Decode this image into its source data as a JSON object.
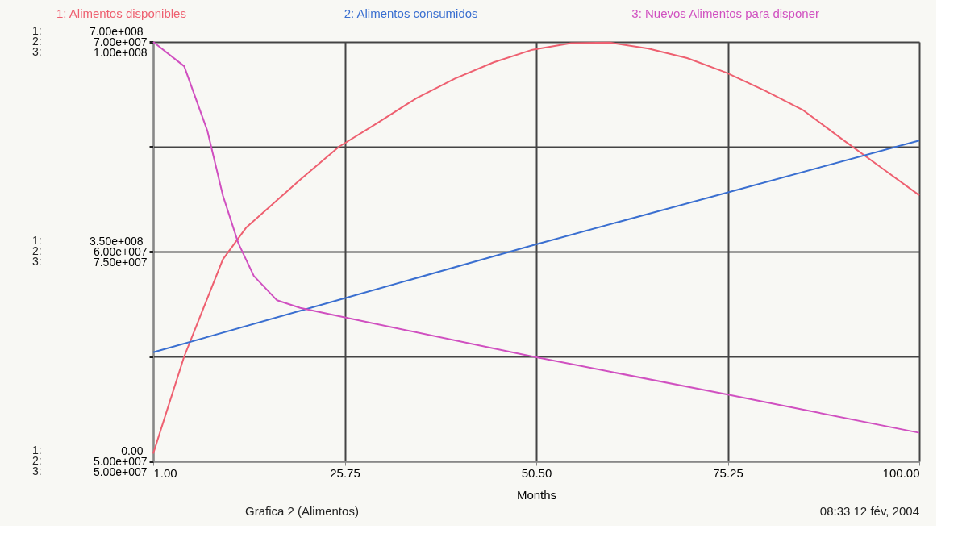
{
  "chart_data": {
    "type": "line",
    "title": "Grafica 2 (Alimentos)",
    "xlabel": "Months",
    "annotations": [
      "1:",
      "2:",
      "3:",
      "1:",
      "2:",
      "3:",
      "1:",
      "2:",
      "3:",
      "08:33  12 fév, 2004"
    ],
    "xlim": [
      1,
      100
    ],
    "xticks": [
      {
        "value": 1,
        "label": "1.00"
      },
      {
        "value": 25.75,
        "label": "25.75"
      },
      {
        "value": 50.5,
        "label": "50.50"
      },
      {
        "value": 75.25,
        "label": "75.25"
      },
      {
        "value": 100,
        "label": "100.00"
      }
    ],
    "ylim": [
      0,
      700000000
    ],
    "yticks": [
      {
        "value": 0,
        "label": "0.00"
      },
      {
        "value": 175000000,
        "label": null
      },
      {
        "value": 350000000,
        "label": "3.50e+008"
      },
      {
        "value": 525000000,
        "label": null
      },
      {
        "value": 700000000,
        "label": "7.00e+008"
      }
    ],
    "y2lim": [
      50000000,
      70000000
    ],
    "y2ticks": [
      {
        "value": 50000000,
        "label": "5.00e+007"
      },
      {
        "value": 60000000,
        "label": "6.00e+007"
      },
      {
        "value": 70000000,
        "label": "7.00e+007"
      }
    ],
    "y3lim": [
      50000000,
      100000000
    ],
    "y3ticks": [
      {
        "value": 50000000,
        "label": "5.00e+007"
      },
      {
        "value": 75000000,
        "label": "7.50e+007"
      },
      {
        "value": 100000000,
        "label": "1.00e+008"
      }
    ],
    "grid": true,
    "legend": "top",
    "series": [
      {
        "name": "1: Alimentos disponibles",
        "color": "#ee6070",
        "x": [
          1,
          5,
          10,
          13,
          20,
          25,
          30,
          35,
          40,
          45,
          50,
          55,
          60,
          65,
          70,
          75,
          80,
          85,
          90,
          95,
          100
        ],
        "values": [
          13000000,
          175000000,
          337000000,
          390000000,
          470000000,
          525000000,
          565000000,
          606000000,
          639000000,
          666000000,
          687000000,
          698000000,
          699000000,
          689000000,
          673000000,
          649000000,
          619000000,
          586000000,
          538000000,
          491000000,
          444000000
        ]
      },
      {
        "name": "2: Alimentos consumidos",
        "color": "#3a6fd0",
        "axis": "y2",
        "x": [
          1,
          25,
          50,
          75,
          100
        ],
        "values": [
          55200000,
          57700000,
          60300000,
          62800000,
          65300000
        ]
      },
      {
        "name": "3: Nuevos Alimentos para disponer",
        "color": "#d050c0",
        "axis": "y3",
        "x": [
          1,
          5,
          8,
          10,
          12,
          14,
          17,
          20,
          25,
          50,
          75,
          100
        ],
        "values": [
          100000000,
          97100000,
          89400000,
          81700000,
          76000000,
          72100000,
          69200000,
          68300000,
          67300000,
          62500000,
          58000000,
          53400000
        ]
      }
    ]
  }
}
